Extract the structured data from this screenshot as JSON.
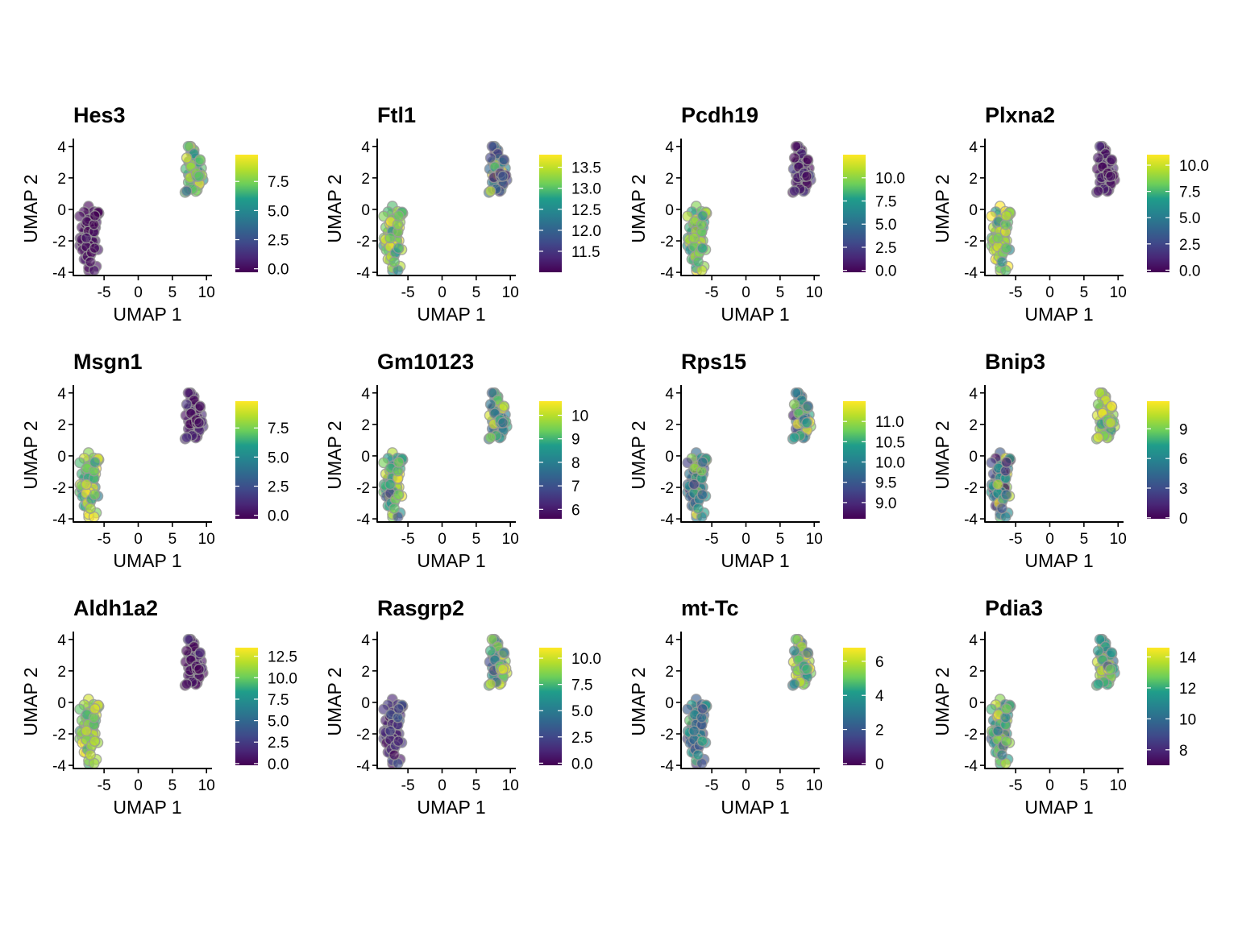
{
  "figure": {
    "colormap": [
      "#440154",
      "#482777",
      "#3f4a8a",
      "#31678e",
      "#26838f",
      "#1f9d8a",
      "#6cce5a",
      "#b6de2b",
      "#fee825"
    ],
    "point_stroke": "#9a9a9a",
    "point_opacity": 0.62
  },
  "chart_data": [
    {
      "type": "scatter",
      "title": "Hes3",
      "xlabel": "UMAP 1",
      "ylabel": "UMAP 2",
      "xlim": [
        -9.5,
        10.8
      ],
      "ylim": [
        -4.2,
        4.5
      ],
      "xticks": [
        "-5",
        "0",
        "5",
        "10"
      ],
      "yticks": [
        "-4",
        "-2",
        "0",
        "2",
        "4"
      ],
      "colorbar": {
        "min": -0.3,
        "max": 9.8,
        "ticks": [
          "0.0",
          "2.5",
          "5.0",
          "7.5"
        ]
      },
      "clusters": [
        {
          "name": "left",
          "level": 0.02,
          "spread": 0.04
        },
        {
          "name": "right",
          "level": 0.72,
          "spread": 0.18
        }
      ]
    },
    {
      "type": "scatter",
      "title": "Ftl1",
      "xlabel": "UMAP 1",
      "ylabel": "UMAP 2",
      "xlim": [
        -9.5,
        10.8
      ],
      "ylim": [
        -4.2,
        4.5
      ],
      "xticks": [
        "-5",
        "0",
        "5",
        "10"
      ],
      "yticks": [
        "-4",
        "-2",
        "0",
        "2",
        "4"
      ],
      "colorbar": {
        "min": 11.0,
        "max": 13.8,
        "ticks": [
          "11.5",
          "12.0",
          "12.5",
          "13.0",
          "13.5"
        ]
      },
      "clusters": [
        {
          "name": "left",
          "level": 0.78,
          "spread": 0.15
        },
        {
          "name": "right",
          "level": 0.42,
          "spread": 0.28
        }
      ]
    },
    {
      "type": "scatter",
      "title": "Pcdh19",
      "xlabel": "UMAP 1",
      "ylabel": "UMAP 2",
      "xlim": [
        -9.5,
        10.8
      ],
      "ylim": [
        -4.2,
        4.5
      ],
      "xticks": [
        "-5",
        "0",
        "5",
        "10"
      ],
      "yticks": [
        "-4",
        "-2",
        "0",
        "2",
        "4"
      ],
      "colorbar": {
        "min": -0.2,
        "max": 12.5,
        "ticks": [
          "0.0",
          "2.5",
          "5.0",
          "7.5",
          "10.0"
        ]
      },
      "clusters": [
        {
          "name": "left",
          "level": 0.76,
          "spread": 0.14
        },
        {
          "name": "right",
          "level": 0.06,
          "spread": 0.08
        }
      ]
    },
    {
      "type": "scatter",
      "title": "Plxna2",
      "xlabel": "UMAP 1",
      "ylabel": "UMAP 2",
      "xlim": [
        -9.5,
        10.8
      ],
      "ylim": [
        -4.2,
        4.5
      ],
      "xticks": [
        "-5",
        "0",
        "5",
        "10"
      ],
      "yticks": [
        "-4",
        "-2",
        "0",
        "2",
        "4"
      ],
      "colorbar": {
        "min": -0.2,
        "max": 11.0,
        "ticks": [
          "0.0",
          "2.5",
          "5.0",
          "7.5",
          "10.0"
        ]
      },
      "clusters": [
        {
          "name": "left",
          "level": 0.78,
          "spread": 0.14
        },
        {
          "name": "right",
          "level": 0.05,
          "spread": 0.07
        }
      ]
    },
    {
      "type": "scatter",
      "title": "Msgn1",
      "xlabel": "UMAP 1",
      "ylabel": "UMAP 2",
      "xlim": [
        -9.5,
        10.8
      ],
      "ylim": [
        -4.2,
        4.5
      ],
      "xticks": [
        "-5",
        "0",
        "5",
        "10"
      ],
      "yticks": [
        "-4",
        "-2",
        "0",
        "2",
        "4"
      ],
      "colorbar": {
        "min": -0.3,
        "max": 9.8,
        "ticks": [
          "0.0",
          "2.5",
          "5.0",
          "7.5"
        ]
      },
      "clusters": [
        {
          "name": "left",
          "level": 0.76,
          "spread": 0.18
        },
        {
          "name": "right",
          "level": 0.03,
          "spread": 0.06
        }
      ]
    },
    {
      "type": "scatter",
      "title": "Gm10123",
      "xlabel": "UMAP 1",
      "ylabel": "UMAP 2",
      "xlim": [
        -9.5,
        10.8
      ],
      "ylim": [
        -4.2,
        4.5
      ],
      "xticks": [
        "-5",
        "0",
        "5",
        "10"
      ],
      "yticks": [
        "-4",
        "-2",
        "0",
        "2",
        "4"
      ],
      "colorbar": {
        "min": 5.6,
        "max": 10.6,
        "ticks": [
          "6",
          "7",
          "8",
          "9",
          "10"
        ]
      },
      "clusters": [
        {
          "name": "left",
          "level": 0.72,
          "spread": 0.2
        },
        {
          "name": "right",
          "level": 0.68,
          "spread": 0.22
        }
      ]
    },
    {
      "type": "scatter",
      "title": "Rps15",
      "xlabel": "UMAP 1",
      "ylabel": "UMAP 2",
      "xlim": [
        -9.5,
        10.8
      ],
      "ylim": [
        -4.2,
        4.5
      ],
      "xticks": [
        "-5",
        "0",
        "5",
        "10"
      ],
      "yticks": [
        "-4",
        "-2",
        "0",
        "2",
        "4"
      ],
      "colorbar": {
        "min": 8.6,
        "max": 11.5,
        "ticks": [
          "9.0",
          "9.5",
          "10.0",
          "10.5",
          "11.0"
        ]
      },
      "clusters": [
        {
          "name": "left",
          "level": 0.5,
          "spread": 0.22
        },
        {
          "name": "right",
          "level": 0.55,
          "spread": 0.2
        }
      ]
    },
    {
      "type": "scatter",
      "title": "Bnip3",
      "xlabel": "UMAP 1",
      "ylabel": "UMAP 2",
      "xlim": [
        -9.5,
        10.8
      ],
      "ylim": [
        -4.2,
        4.5
      ],
      "xticks": [
        "-5",
        "0",
        "5",
        "10"
      ],
      "yticks": [
        "-4",
        "-2",
        "0",
        "2",
        "4"
      ],
      "colorbar": {
        "min": -0.1,
        "max": 11.8,
        "ticks": [
          "0",
          "3",
          "6",
          "9"
        ]
      },
      "clusters": [
        {
          "name": "left",
          "level": 0.45,
          "spread": 0.3
        },
        {
          "name": "right",
          "level": 0.82,
          "spread": 0.12
        }
      ]
    },
    {
      "type": "scatter",
      "title": "Aldh1a2",
      "xlabel": "UMAP 1",
      "ylabel": "UMAP 2",
      "xlim": [
        -9.5,
        10.8
      ],
      "ylim": [
        -4.2,
        4.5
      ],
      "xticks": [
        "-5",
        "0",
        "5",
        "10"
      ],
      "yticks": [
        "-4",
        "-2",
        "0",
        "2",
        "4"
      ],
      "colorbar": {
        "min": -0.2,
        "max": 13.5,
        "ticks": [
          "0.0",
          "2.5",
          "5.0",
          "7.5",
          "10.0",
          "12.5"
        ]
      },
      "clusters": [
        {
          "name": "left",
          "level": 0.8,
          "spread": 0.14
        },
        {
          "name": "right",
          "level": 0.05,
          "spread": 0.07
        }
      ]
    },
    {
      "type": "scatter",
      "title": "Rasgrp2",
      "xlabel": "UMAP 1",
      "ylabel": "UMAP 2",
      "xlim": [
        -9.5,
        10.8
      ],
      "ylim": [
        -4.2,
        4.5
      ],
      "xticks": [
        "-5",
        "0",
        "5",
        "10"
      ],
      "yticks": [
        "-4",
        "-2",
        "0",
        "2",
        "4"
      ],
      "colorbar": {
        "min": -0.2,
        "max": 11.0,
        "ticks": [
          "0.0",
          "2.5",
          "5.0",
          "7.5",
          "10.0"
        ]
      },
      "clusters": [
        {
          "name": "left",
          "level": 0.1,
          "spread": 0.12
        },
        {
          "name": "right",
          "level": 0.74,
          "spread": 0.2
        }
      ]
    },
    {
      "type": "scatter",
      "title": "mt-Tc",
      "xlabel": "UMAP 1",
      "ylabel": "UMAP 2",
      "xlim": [
        -9.5,
        10.8
      ],
      "ylim": [
        -4.2,
        4.5
      ],
      "xticks": [
        "-5",
        "0",
        "5",
        "10"
      ],
      "yticks": [
        "-4",
        "-2",
        "0",
        "2",
        "4"
      ],
      "colorbar": {
        "min": -0.1,
        "max": 6.8,
        "ticks": [
          "0",
          "2",
          "4",
          "6"
        ]
      },
      "clusters": [
        {
          "name": "left",
          "level": 0.4,
          "spread": 0.22
        },
        {
          "name": "right",
          "level": 0.68,
          "spread": 0.24
        }
      ]
    },
    {
      "type": "scatter",
      "title": "Pdia3",
      "xlabel": "UMAP 1",
      "ylabel": "UMAP 2",
      "xlim": [
        -9.5,
        10.8
      ],
      "ylim": [
        -4.2,
        4.5
      ],
      "xticks": [
        "-5",
        "0",
        "5",
        "10"
      ],
      "yticks": [
        "-4",
        "-2",
        "0",
        "2",
        "4"
      ],
      "colorbar": {
        "min": 7.0,
        "max": 14.6,
        "ticks": [
          "8",
          "10",
          "12",
          "14"
        ]
      },
      "clusters": [
        {
          "name": "left",
          "level": 0.68,
          "spread": 0.2
        },
        {
          "name": "right",
          "level": 0.66,
          "spread": 0.18
        }
      ]
    }
  ]
}
